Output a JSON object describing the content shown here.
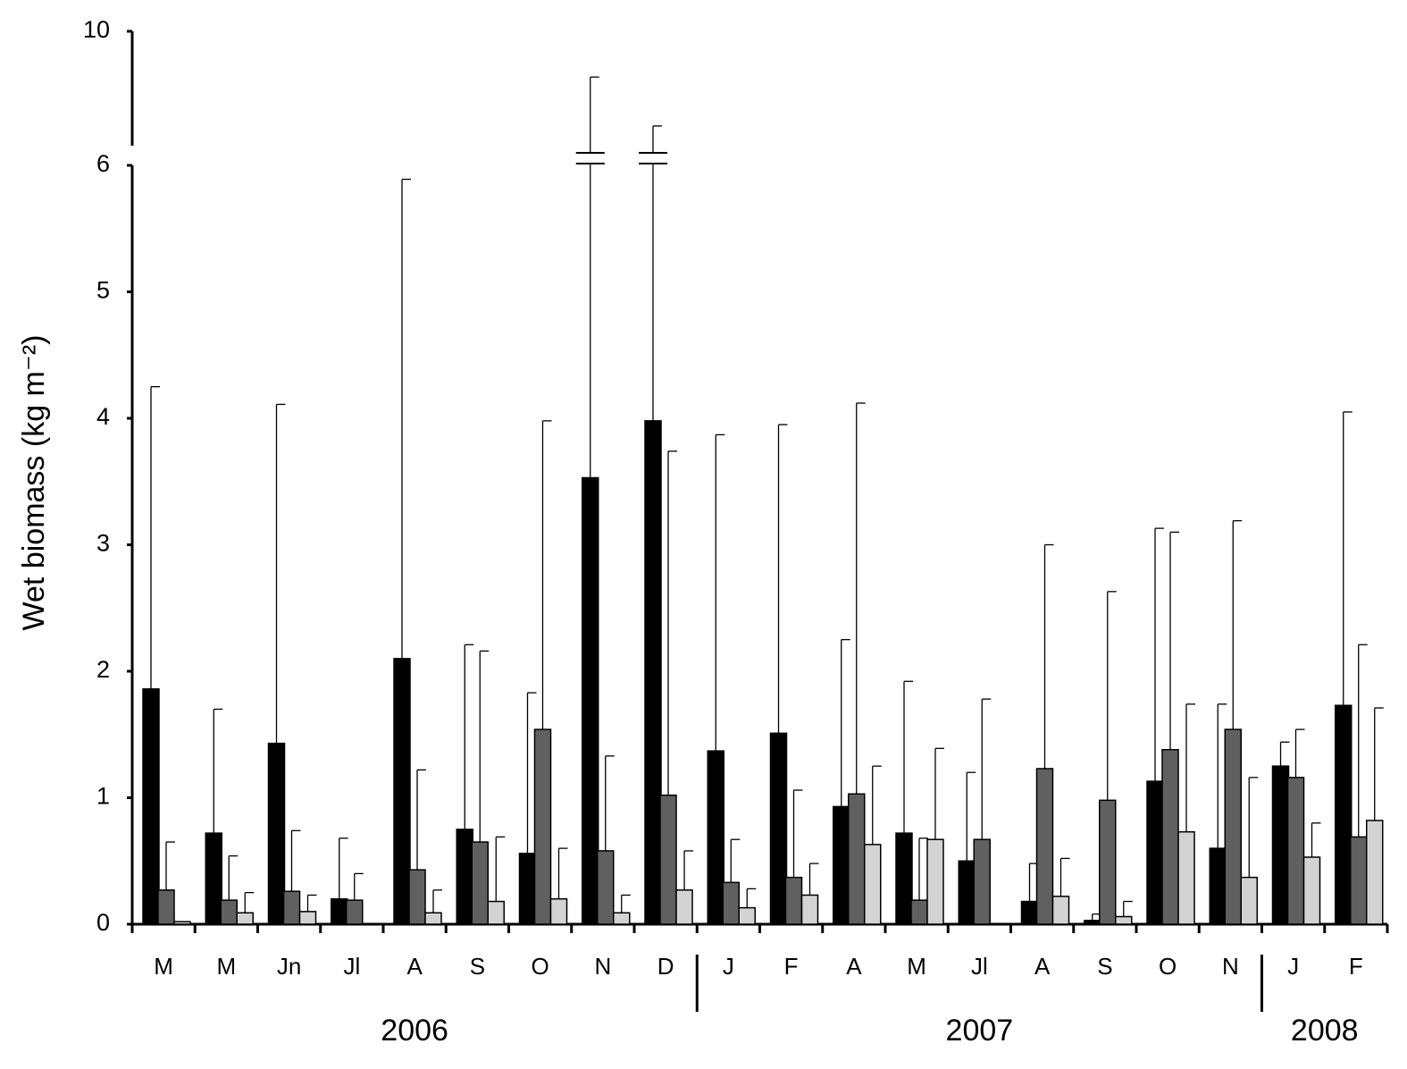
{
  "chart_data": {
    "type": "bar",
    "y_label": "Wet biomass (kg m⁻²)",
    "categories": [
      "M",
      "M",
      "Jn",
      "Jl",
      "A",
      "S",
      "O",
      "N",
      "D",
      "J",
      "F",
      "A",
      "M",
      "Jl",
      "A",
      "S",
      "O",
      "N",
      "J",
      "F"
    ],
    "year_groups": [
      {
        "label": "2006",
        "count": 9
      },
      {
        "label": "2007",
        "count": 9
      },
      {
        "label": "2008",
        "count": 2
      }
    ],
    "series": [
      {
        "color": "#000000",
        "values": [
          1.86,
          0.72,
          1.43,
          0.2,
          2.1,
          0.75,
          0.56,
          3.53,
          3.98,
          1.37,
          1.51,
          0.93,
          0.72,
          0.5,
          0.18,
          0.03,
          1.13,
          0.6,
          1.25,
          1.73
        ],
        "errors": [
          2.39,
          0.98,
          2.68,
          0.48,
          3.79,
          1.46,
          1.27,
          4.87,
          2.71,
          2.5,
          2.44,
          1.32,
          1.2,
          0.7,
          0.3,
          0.05,
          2.0,
          1.14,
          0.19,
          2.32
        ]
      },
      {
        "color": "#606060",
        "values": [
          0.27,
          0.19,
          0.26,
          0.19,
          0.43,
          0.65,
          1.54,
          0.58,
          1.02,
          0.33,
          0.37,
          1.03,
          0.19,
          0.67,
          1.23,
          0.98,
          1.38,
          1.54,
          1.16,
          0.69
        ],
        "errors": [
          0.38,
          0.35,
          0.48,
          0.21,
          0.79,
          1.51,
          2.44,
          0.75,
          2.72,
          0.34,
          0.69,
          3.09,
          0.49,
          1.11,
          1.77,
          1.65,
          1.72,
          1.65,
          0.38,
          1.52
        ]
      },
      {
        "color": "#d3d3d3",
        "values": [
          0.02,
          0.09,
          0.1,
          null,
          0.09,
          0.18,
          0.2,
          0.09,
          0.27,
          0.13,
          0.23,
          0.63,
          0.67,
          null,
          0.22,
          0.06,
          0.73,
          0.37,
          0.53,
          0.82
        ],
        "errors": [
          null,
          0.16,
          0.13,
          null,
          0.18,
          0.51,
          0.4,
          0.14,
          0.31,
          0.15,
          0.25,
          0.62,
          0.72,
          null,
          0.3,
          0.12,
          1.01,
          0.79,
          0.27,
          0.89
        ]
      }
    ],
    "ylim": [
      0,
      10
    ],
    "yticks": [
      0,
      1,
      2,
      3,
      4,
      5,
      6,
      10
    ],
    "ybreak": 6,
    "grid": false
  }
}
